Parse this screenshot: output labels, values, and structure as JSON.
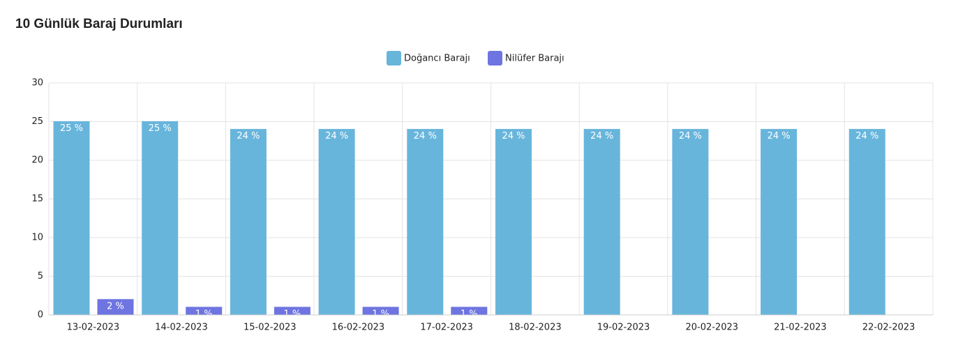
{
  "chart_data": {
    "type": "bar",
    "title": "10 Günlük Baraj Durumları",
    "categories": [
      "13-02-2023",
      "14-02-2023",
      "15-02-2023",
      "16-02-2023",
      "17-02-2023",
      "18-02-2023",
      "19-02-2023",
      "20-02-2023",
      "21-02-2023",
      "22-02-2023"
    ],
    "series": [
      {
        "name": "Doğancı Barajı",
        "color": "#68b5dc",
        "values": [
          25,
          25,
          24,
          24,
          24,
          24,
          24,
          24,
          24,
          24
        ],
        "value_labels": [
          "25 %",
          "25 %",
          "24 %",
          "24 %",
          "24 %",
          "24 %",
          "24 %",
          "24 %",
          "24 %",
          "24 %"
        ]
      },
      {
        "name": "Nilüfer Barajı",
        "color": "#6e74e0",
        "values": [
          2,
          1,
          1,
          1,
          1,
          0,
          0,
          0,
          0,
          0
        ],
        "value_labels": [
          "2 %",
          "1 %",
          "1 %",
          "1 %",
          "1 %",
          null,
          null,
          null,
          null,
          null
        ]
      }
    ],
    "ylim": [
      0,
      30
    ],
    "yticks": [
      0,
      5,
      10,
      15,
      20,
      25,
      30
    ],
    "grid": true,
    "legend": "top"
  }
}
